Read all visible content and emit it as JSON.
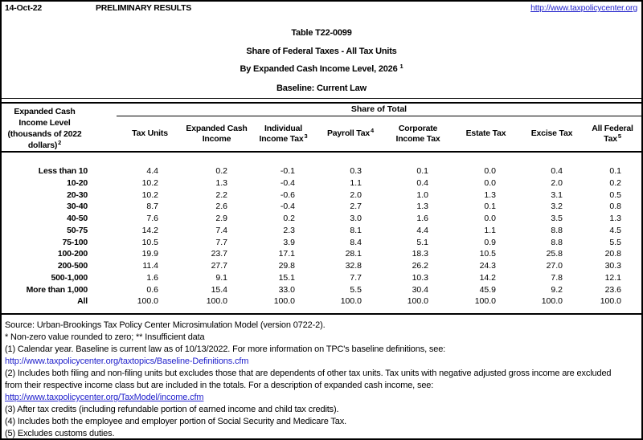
{
  "topbar": {
    "date": "14-Oct-22",
    "status": "PRELIMINARY RESULTS",
    "link": "http://www.taxpolicycenter.org"
  },
  "title": {
    "line1": "Table T22-0099",
    "line2": "Share of Federal Taxes - All Tax Units",
    "line3": "By Expanded Cash Income Level, 2026",
    "line3_sup": "1",
    "line4": "Baseline: Current Law"
  },
  "table": {
    "row_header_lines": [
      "Expanded Cash",
      "Income Level",
      "(thousands of 2022",
      "dollars)"
    ],
    "row_header_sup": "2",
    "group_header": "Share of Total",
    "columns": [
      {
        "lines": [
          "Tax Units"
        ],
        "sup": ""
      },
      {
        "lines": [
          "Expanded Cash",
          "Income"
        ],
        "sup": ""
      },
      {
        "lines": [
          "Individual",
          "Income Tax"
        ],
        "sup": "3"
      },
      {
        "lines": [
          "Payroll Tax"
        ],
        "sup": "4"
      },
      {
        "lines": [
          "Corporate",
          "Income Tax"
        ],
        "sup": ""
      },
      {
        "lines": [
          "Estate Tax"
        ],
        "sup": ""
      },
      {
        "lines": [
          "Excise Tax"
        ],
        "sup": ""
      },
      {
        "lines": [
          "All Federal",
          "Tax"
        ],
        "sup": "5"
      }
    ],
    "rows": [
      {
        "label": "Less than 10",
        "values": [
          "4.4",
          "0.2",
          "-0.1",
          "0.3",
          "0.1",
          "0.0",
          "0.4",
          "0.1"
        ]
      },
      {
        "label": "10-20",
        "values": [
          "10.2",
          "1.3",
          "-0.4",
          "1.1",
          "0.4",
          "0.0",
          "2.0",
          "0.2"
        ]
      },
      {
        "label": "20-30",
        "values": [
          "10.2",
          "2.2",
          "-0.6",
          "2.0",
          "1.0",
          "1.3",
          "3.1",
          "0.5"
        ]
      },
      {
        "label": "30-40",
        "values": [
          "8.7",
          "2.6",
          "-0.4",
          "2.7",
          "1.3",
          "0.1",
          "3.2",
          "0.8"
        ]
      },
      {
        "label": "40-50",
        "values": [
          "7.6",
          "2.9",
          "0.2",
          "3.0",
          "1.6",
          "0.0",
          "3.5",
          "1.3"
        ]
      },
      {
        "label": "50-75",
        "values": [
          "14.2",
          "7.4",
          "2.3",
          "8.1",
          "4.4",
          "1.1",
          "8.8",
          "4.5"
        ]
      },
      {
        "label": "75-100",
        "values": [
          "10.5",
          "7.7",
          "3.9",
          "8.4",
          "5.1",
          "0.9",
          "8.8",
          "5.5"
        ]
      },
      {
        "label": "100-200",
        "values": [
          "19.9",
          "23.7",
          "17.1",
          "28.1",
          "18.3",
          "10.5",
          "25.8",
          "20.8"
        ]
      },
      {
        "label": "200-500",
        "values": [
          "11.4",
          "27.7",
          "29.8",
          "32.8",
          "26.2",
          "24.3",
          "27.0",
          "30.3"
        ]
      },
      {
        "label": "500-1,000",
        "values": [
          "1.6",
          "9.1",
          "15.1",
          "7.7",
          "10.3",
          "14.2",
          "7.8",
          "12.1"
        ]
      },
      {
        "label": "More than 1,000",
        "values": [
          "0.6",
          "15.4",
          "33.0",
          "5.5",
          "30.4",
          "45.9",
          "9.2",
          "23.6"
        ]
      },
      {
        "label": "All",
        "values": [
          "100.0",
          "100.0",
          "100.0",
          "100.0",
          "100.0",
          "100.0",
          "100.0",
          "100.0"
        ]
      }
    ]
  },
  "footnotes": [
    {
      "text": "Source: Urban-Brookings Tax Policy Center Microsimulation Model (version 0722-2).",
      "link": false,
      "underline": false
    },
    {
      "text": "* Non-zero value rounded to zero; ** Insufficient data",
      "link": false,
      "underline": false
    },
    {
      "text": "(1) Calendar year. Baseline is current law as of 10/13/2022. For more information on TPC's baseline definitions, see:",
      "link": false,
      "underline": false
    },
    {
      "text": "http://www.taxpolicycenter.org/taxtopics/Baseline-Definitions.cfm",
      "link": true,
      "underline": false
    },
    {
      "text": "(2) Includes both filing and non-filing units but excludes those that are dependents of other tax units. Tax units with negative adjusted gross income are excluded",
      "link": false,
      "underline": false
    },
    {
      "text": "from their respective income class but are included in the totals. For a description of expanded cash income, see:",
      "link": false,
      "underline": false
    },
    {
      "text": "http://www.taxpolicycenter.org/TaxModel/income.cfm",
      "link": true,
      "underline": true
    },
    {
      "text": "(3) After tax credits (including refundable portion of earned income and child tax credits).",
      "link": false,
      "underline": false
    },
    {
      "text": "(4) Includes both the employee and employer portion of Social Security and Medicare Tax.",
      "link": false,
      "underline": false
    },
    {
      "text": "(5) Excludes customs duties.",
      "link": false,
      "underline": false
    }
  ],
  "colors": {
    "link_blue": "#2222cc"
  }
}
